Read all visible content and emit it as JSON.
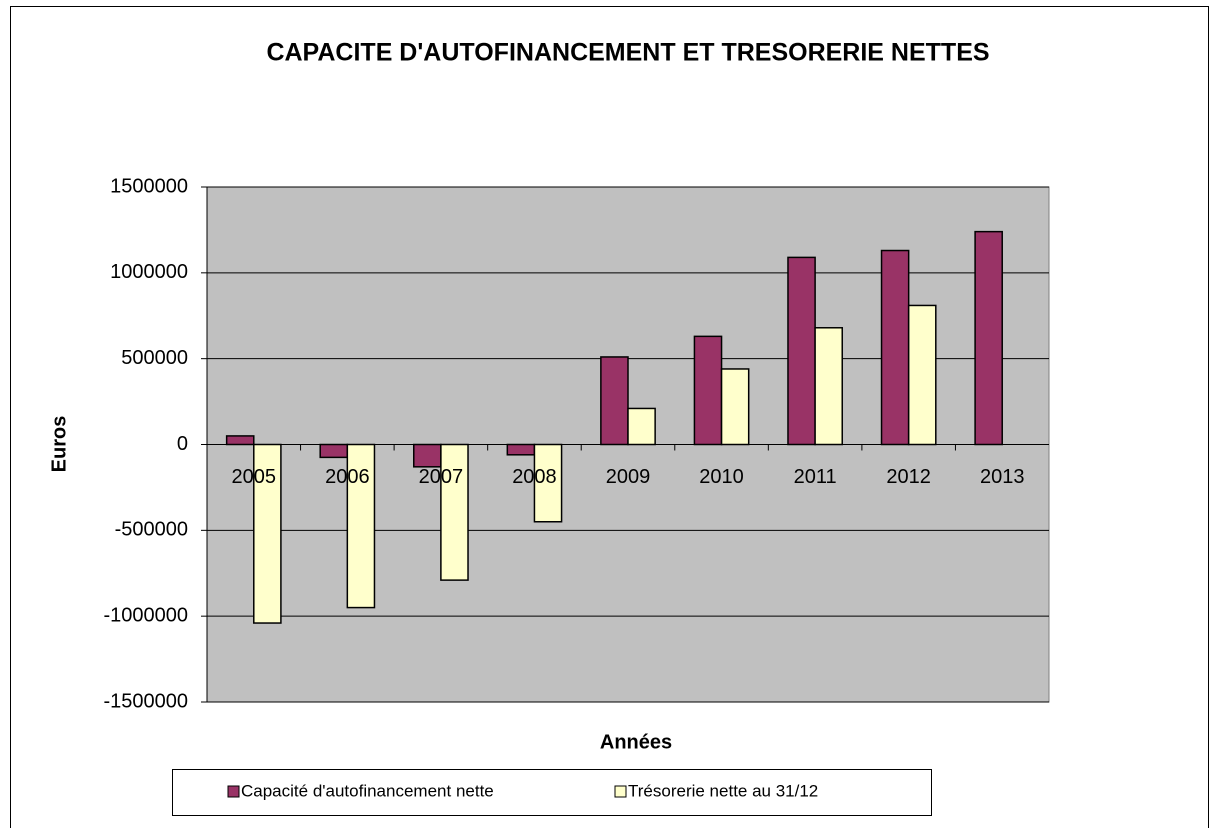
{
  "chart_data": {
    "type": "bar",
    "title": "CAPACITE D'AUTOFINANCEMENT ET TRESORERIE NETTES",
    "x_label": "Années",
    "y_label": "Euros",
    "categories": [
      "2005",
      "2006",
      "2007",
      "2008",
      "2009",
      "2010",
      "2011",
      "2012",
      "2013"
    ],
    "series": [
      {
        "name": "Capacité d'autofinancement nette",
        "color": "#993366",
        "values": [
          50000,
          -75000,
          -130000,
          -60000,
          510000,
          630000,
          1090000,
          1130000,
          1240000
        ]
      },
      {
        "name": "Trésorerie nette au 31/12",
        "color": "#ffffcc",
        "values": [
          -1040000,
          -950000,
          -790000,
          -450000,
          210000,
          440000,
          680000,
          810000,
          null
        ]
      }
    ],
    "ylim": [
      -1500000,
      1500000
    ],
    "yticks": [
      -1500000,
      -1000000,
      -500000,
      0,
      500000,
      1000000,
      1500000
    ],
    "grid": true,
    "legend": "bottom",
    "plot_background": "#c0c0c0"
  }
}
